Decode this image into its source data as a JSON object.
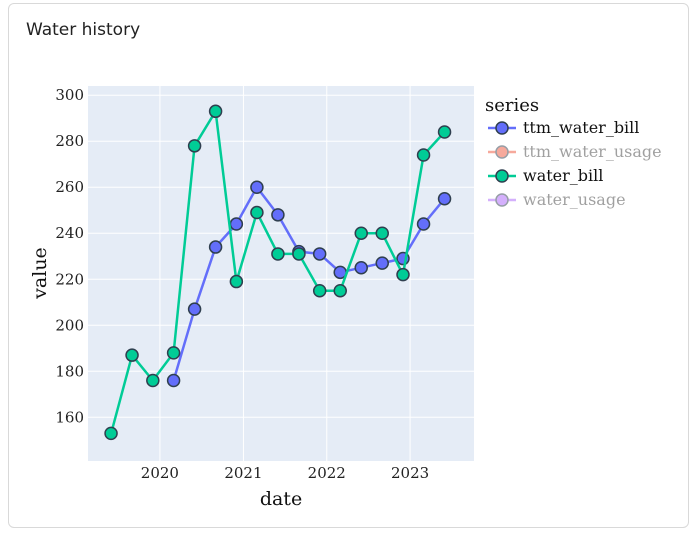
{
  "card": {
    "title": "Water history"
  },
  "chart_data": {
    "type": "line",
    "xlabel": "date",
    "ylabel": "value",
    "xlim": [
      "2019-02-20",
      "2023-10-08"
    ],
    "ylim": [
      141,
      304
    ],
    "x_ticks": [
      "2020-01-01",
      "2021-01-01",
      "2022-01-01",
      "2023-01-01"
    ],
    "x_tick_labels": [
      "2020",
      "2021",
      "2022",
      "2023"
    ],
    "y_ticks": [
      160,
      180,
      200,
      220,
      240,
      260,
      280,
      300
    ],
    "grid": true,
    "legend": {
      "title": "series",
      "placement": "right"
    },
    "series": [
      {
        "name": "ttm_water_bill",
        "color": "#636efa",
        "visible": true,
        "x": [
          "2020-03-01",
          "2020-06-01",
          "2020-09-01",
          "2020-12-01",
          "2021-03-01",
          "2021-06-01",
          "2021-09-01",
          "2021-12-01",
          "2022-03-01",
          "2022-06-01",
          "2022-09-01",
          "2022-12-01",
          "2023-03-01",
          "2023-06-01"
        ],
        "values": [
          176,
          207,
          234,
          244,
          260,
          248,
          232,
          231,
          223,
          225,
          227,
          229,
          244,
          255
        ]
      },
      {
        "name": "ttm_water_usage",
        "color": "#ef553b",
        "visible": false,
        "x": [],
        "values": []
      },
      {
        "name": "water_bill",
        "color": "#00cc96",
        "visible": true,
        "x": [
          "2019-06-01",
          "2019-09-01",
          "2019-12-01",
          "2020-03-01",
          "2020-06-01",
          "2020-09-01",
          "2020-12-01",
          "2021-03-01",
          "2021-06-01",
          "2021-09-01",
          "2021-12-01",
          "2022-03-01",
          "2022-06-01",
          "2022-09-01",
          "2022-12-01",
          "2023-03-01",
          "2023-06-01"
        ],
        "values": [
          153,
          187,
          176,
          188,
          278,
          293,
          219,
          249,
          231,
          231,
          215,
          215,
          240,
          240,
          222,
          274,
          284
        ]
      },
      {
        "name": "water_usage",
        "color": "#ab63fa",
        "visible": false,
        "x": [],
        "values": []
      }
    ]
  }
}
